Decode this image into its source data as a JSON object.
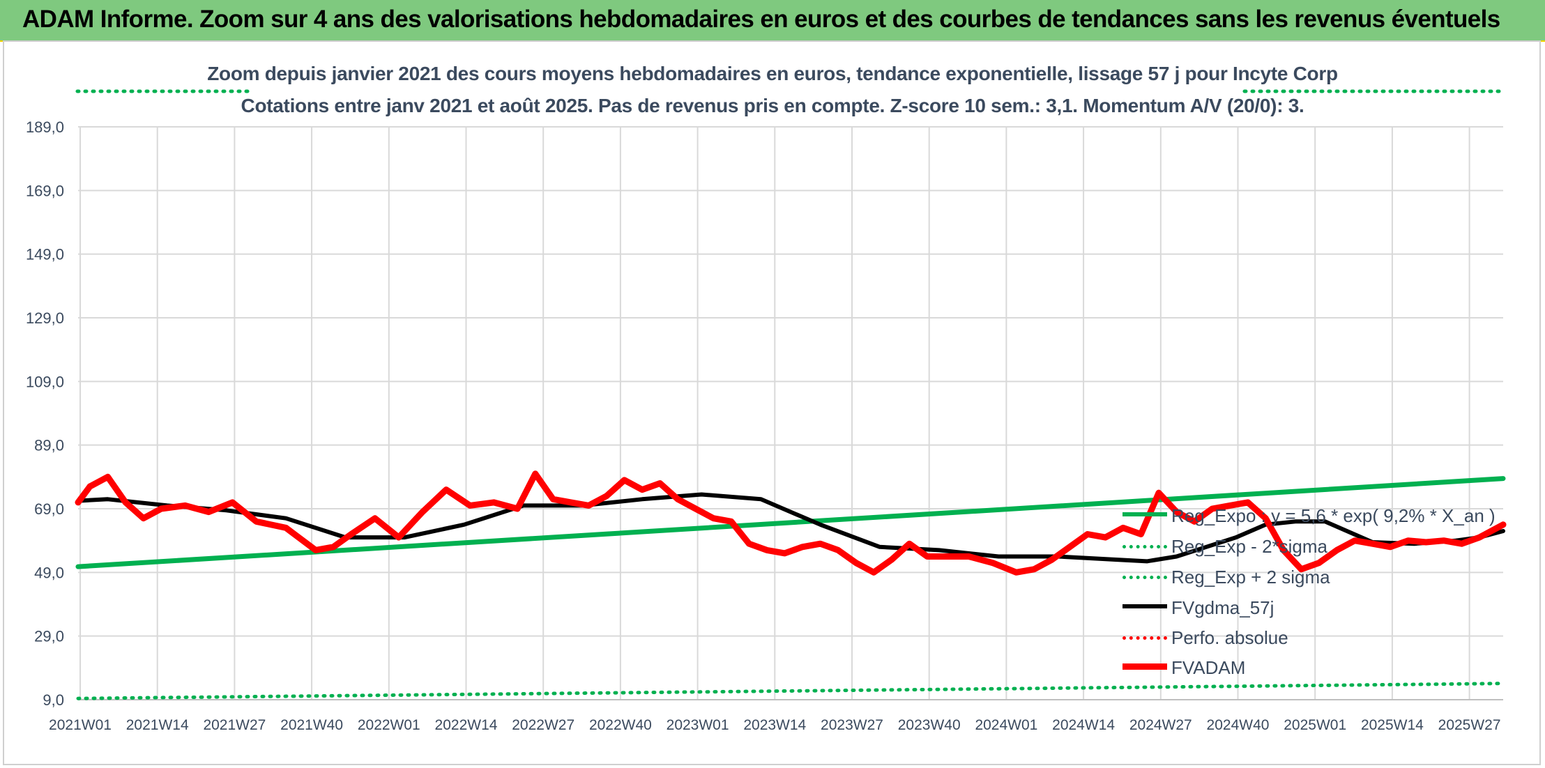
{
  "header": {
    "title": "ADAM Informe. Zoom sur 4 ans des valorisations hebdomadaires en euros et des courbes de tendances sans les revenus éventuels"
  },
  "chart_data": {
    "type": "line",
    "title_line1": "Zoom depuis janvier 2021 des cours moyens hebdomadaires en euros, tendance exponentielle, lissage 57 j pour Incyte Corp",
    "title_line2": "Cotations entre janv 2021 et août 2025. Pas de revenus pris en compte. Z-score 10 sem.: 3,1. Momentum A/V (20/0): 3.",
    "ylim": [
      9,
      189
    ],
    "yticks": [
      "189,0",
      "169,0",
      "149,0",
      "129,0",
      "109,0",
      "89,0",
      "69,0",
      "49,0",
      "29,0",
      "9,0"
    ],
    "x_categories": [
      "2021W01",
      "2021W14",
      "2021W27",
      "2021W40",
      "2022W01",
      "2022W14",
      "2022W27",
      "2022W40",
      "2023W01",
      "2023W14",
      "2023W27",
      "2023W40",
      "2024W01",
      "2024W14",
      "2024W27",
      "2024W40",
      "2025W01",
      "2025W14",
      "2025W27"
    ],
    "grid": true,
    "legend_position": "lower-right",
    "series": [
      {
        "name": "Reg_Expo : y = 5,6 * exp( 9,2% *  X_an )",
        "color": "#00b050",
        "style": "solid",
        "x": [
          0,
          240
        ],
        "y": [
          50.8,
          78.5
        ]
      },
      {
        "name": "Reg_Exp - 2*sigma",
        "color": "#00b050",
        "style": "dotted",
        "x": [
          0,
          240
        ],
        "y": [
          9.4,
          14.1
        ]
      },
      {
        "name": "Reg_Exp + 2 sigma",
        "color": "#00b050",
        "style": "dotted",
        "x": [
          0,
          240
        ],
        "y": [
          194.5,
          194.5
        ]
      },
      {
        "name": "FVgdma_57j",
        "color": "#000000",
        "style": "solid",
        "x": [
          0,
          5,
          15,
          25,
          35,
          45,
          55,
          65,
          75,
          85,
          95,
          105,
          115,
          125,
          135,
          145,
          155,
          165,
          175,
          180,
          185,
          190,
          195,
          200,
          205,
          210,
          218,
          225,
          232,
          236,
          240
        ],
        "y": [
          71.5,
          72,
          70,
          68.5,
          66,
          60,
          60,
          64,
          70,
          70,
          72,
          73.5,
          72,
          64,
          57,
          56,
          54,
          54,
          53,
          52.5,
          54,
          57,
          60,
          64,
          65,
          65,
          58.5,
          58,
          59,
          60,
          62
        ]
      },
      {
        "name": "Perfo. absolue",
        "color": "#ff0000",
        "style": "dotted",
        "x": [],
        "y": []
      },
      {
        "name": "FVADAM",
        "color": "#ff0000",
        "style": "solid",
        "x": [
          0,
          2,
          5,
          8,
          11,
          14,
          18,
          22,
          26,
          30,
          35,
          40,
          43,
          46,
          50,
          54,
          58,
          62,
          66,
          70,
          74,
          77,
          80,
          83,
          86,
          89,
          92,
          95,
          98,
          101,
          104,
          107,
          110,
          113,
          116,
          119,
          122,
          125,
          128,
          131,
          134,
          137,
          140,
          143,
          146,
          150,
          154,
          158,
          161,
          164,
          167,
          170,
          173,
          176,
          179,
          182,
          185,
          188,
          191,
          194,
          197,
          200,
          203,
          206,
          209,
          212,
          215,
          218,
          221,
          224,
          227,
          230,
          233,
          236,
          239,
          240
        ],
        "y": [
          71,
          76,
          79,
          71,
          66,
          69,
          70,
          68,
          71,
          65,
          63,
          56,
          57,
          61,
          66,
          60,
          68,
          75,
          70,
          71,
          69,
          80,
          72,
          71,
          70,
          73,
          78,
          75,
          77,
          72,
          69,
          66,
          65,
          58,
          56,
          55,
          57,
          58,
          56,
          52,
          49,
          53,
          58,
          54,
          54,
          54,
          52,
          49,
          50,
          53,
          57,
          61,
          60,
          63,
          61,
          74,
          68,
          65,
          69,
          70,
          71,
          66,
          56,
          50,
          52,
          56,
          59,
          58,
          57,
          59,
          58.5,
          59,
          58,
          60,
          63,
          64
        ]
      }
    ]
  }
}
